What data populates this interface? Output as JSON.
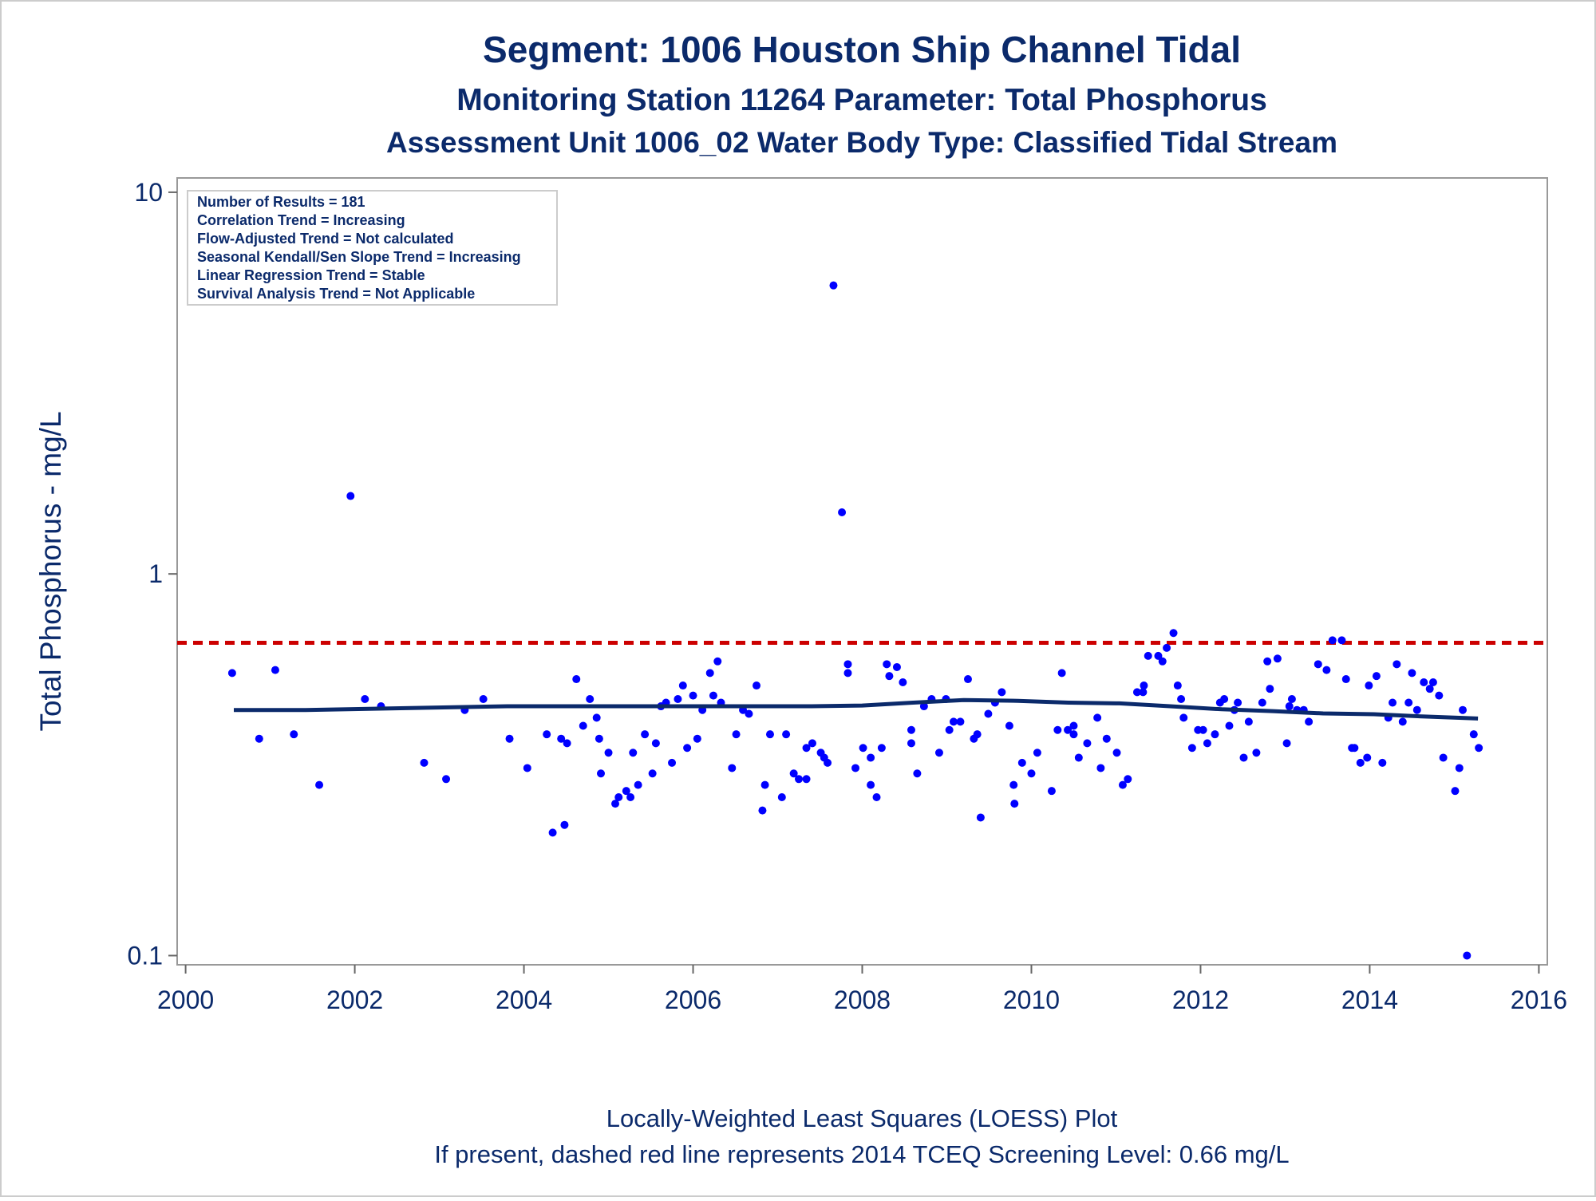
{
  "chart_data": {
    "type": "scatter",
    "title": "Segment: 1006  Houston Ship Channel Tidal",
    "subtitles": [
      "Monitoring Station 11264 Parameter: Total Phosphorus",
      "Assessment Unit 1006_02   Water Body Type: Classified Tidal Stream"
    ],
    "y_label": "Total Phosphorus - mg/L",
    "annotations": [
      "Number of Results = 181",
      "Correlation Trend = Increasing",
      "Flow-Adjusted Trend = Not calculated",
      "Seasonal Kendall/Sen Slope Trend = Increasing",
      "Linear Regression Trend = Stable",
      "Survival Analysis Trend = Not Applicable"
    ],
    "footnotes": [
      "Locally-Weighted Least Squares (LOESS) Plot",
      "If present, dashed red line represents 2014 TCEQ Screening Level: 0.66 mg/L"
    ],
    "xlim": [
      1999.9,
      2016.1
    ],
    "xticks": [
      2000,
      2002,
      2004,
      2006,
      2008,
      2010,
      2012,
      2014,
      2016
    ],
    "ylim": [
      0.0946,
      10.9
    ],
    "yticks": [
      0.1,
      1,
      10
    ],
    "yscale": "log",
    "reference_line": {
      "value": 0.66,
      "color": "#cc0000",
      "style": "dashed"
    },
    "series": [
      {
        "type": "scatter",
        "color": "#0000ff",
        "x": [
          2000.55,
          2000.87,
          2001.06,
          2001.28,
          2001.58,
          2001.95,
          2002.12,
          2002.31,
          2002.82,
          2003.08,
          2003.3,
          2003.52,
          2003.83,
          2004.04,
          2004.27,
          2004.34,
          2004.44,
          2004.48,
          2004.51,
          2004.62,
          2004.7,
          2004.78,
          2004.86,
          2004.89,
          2004.91,
          2005.0,
          2005.08,
          2005.12,
          2005.21,
          2005.26,
          2005.29,
          2005.35,
          2005.43,
          2005.52,
          2005.56,
          2005.62,
          2005.68,
          2005.75,
          2005.82,
          2005.88,
          2005.93,
          2006.0,
          2006.05,
          2006.11,
          2006.2,
          2006.24,
          2006.29,
          2006.33,
          2006.46,
          2006.51,
          2006.59,
          2006.66,
          2006.75,
          2006.82,
          2006.85,
          2006.91,
          2007.05,
          2007.1,
          2007.19,
          2007.25,
          2007.34,
          2007.34,
          2007.41,
          2007.51,
          2007.55,
          2007.59,
          2007.66,
          2007.76,
          2007.83,
          2007.83,
          2007.92,
          2008.01,
          2008.1,
          2008.1,
          2008.17,
          2008.23,
          2008.29,
          2008.32,
          2008.41,
          2008.48,
          2008.58,
          2008.58,
          2008.65,
          2008.73,
          2008.82,
          2008.91,
          2008.99,
          2009.03,
          2009.08,
          2009.16,
          2009.25,
          2009.32,
          2009.36,
          2009.4,
          2009.49,
          2009.57,
          2009.65,
          2009.74,
          2009.79,
          2009.8,
          2009.89,
          2010.0,
          2010.07,
          2010.24,
          2010.31,
          2010.36,
          2010.43,
          2010.5,
          2010.5,
          2010.56,
          2010.66,
          2010.78,
          2010.82,
          2010.89,
          2011.01,
          2011.08,
          2011.14,
          2011.25,
          2011.32,
          2011.33,
          2011.38,
          2011.5,
          2011.55,
          2011.6,
          2011.68,
          2011.73,
          2011.77,
          2011.8,
          2011.9,
          2011.97,
          2012.03,
          2012.08,
          2012.17,
          2012.23,
          2012.28,
          2012.34,
          2012.4,
          2012.44,
          2012.51,
          2012.57,
          2012.66,
          2012.73,
          2012.79,
          2012.82,
          2012.91,
          2013.02,
          2013.05,
          2013.08,
          2013.14,
          2013.22,
          2013.28,
          2013.39,
          2013.49,
          2013.56,
          2013.67,
          2013.72,
          2013.79,
          2013.82,
          2013.89,
          2013.97,
          2013.99,
          2014.08,
          2014.15,
          2014.22,
          2014.27,
          2014.32,
          2014.39,
          2014.46,
          2014.5,
          2014.56,
          2014.64,
          2014.71,
          2014.75,
          2014.82,
          2014.87,
          2015.01,
          2015.06,
          2015.1,
          2015.15,
          2015.23,
          2015.29
        ],
        "values": [
          0.55,
          0.37,
          0.56,
          0.38,
          0.28,
          1.6,
          0.47,
          0.45,
          0.32,
          0.29,
          0.44,
          0.47,
          0.37,
          0.31,
          0.38,
          0.21,
          0.37,
          0.22,
          0.36,
          0.53,
          0.4,
          0.47,
          0.42,
          0.37,
          0.3,
          0.34,
          0.25,
          0.26,
          0.27,
          0.26,
          0.34,
          0.28,
          0.38,
          0.3,
          0.36,
          0.45,
          0.46,
          0.32,
          0.47,
          0.51,
          0.35,
          0.48,
          0.37,
          0.44,
          0.55,
          0.48,
          0.59,
          0.46,
          0.31,
          0.38,
          0.44,
          0.43,
          0.51,
          0.24,
          0.28,
          0.38,
          0.26,
          0.38,
          0.3,
          0.29,
          0.29,
          0.35,
          0.36,
          0.34,
          0.33,
          0.32,
          5.7,
          1.45,
          0.58,
          0.55,
          0.31,
          0.35,
          0.33,
          0.28,
          0.26,
          0.35,
          0.58,
          0.54,
          0.57,
          0.52,
          0.39,
          0.36,
          0.3,
          0.45,
          0.47,
          0.34,
          0.47,
          0.39,
          0.41,
          0.41,
          0.53,
          0.37,
          0.38,
          0.23,
          0.43,
          0.46,
          0.49,
          0.4,
          0.28,
          0.25,
          0.32,
          0.3,
          0.34,
          0.27,
          0.39,
          0.55,
          0.39,
          0.4,
          0.38,
          0.33,
          0.36,
          0.42,
          0.31,
          0.37,
          0.34,
          0.28,
          0.29,
          0.49,
          0.49,
          0.51,
          0.61,
          0.61,
          0.59,
          0.64,
          0.7,
          0.51,
          0.47,
          0.42,
          0.35,
          0.39,
          0.39,
          0.36,
          0.38,
          0.46,
          0.47,
          0.4,
          0.44,
          0.46,
          0.33,
          0.41,
          0.34,
          0.46,
          0.59,
          0.5,
          0.6,
          0.36,
          0.45,
          0.47,
          0.44,
          0.44,
          0.41,
          0.58,
          0.56,
          0.67,
          0.67,
          0.53,
          0.35,
          0.35,
          0.32,
          0.33,
          0.51,
          0.54,
          0.32,
          0.42,
          0.46,
          0.58,
          0.41,
          0.46,
          0.55,
          0.44,
          0.52,
          0.5,
          0.52,
          0.48,
          0.33,
          0.27,
          0.31,
          0.44,
          0.1,
          0.38,
          0.35
        ]
      },
      {
        "type": "line",
        "color": "#0b2a6b",
        "x": [
          2000.57,
          2001.42,
          2002.6,
          2003.8,
          2005.0,
          2006.2,
          2007.4,
          2008.0,
          2008.6,
          2009.2,
          2009.84,
          2010.44,
          2011.04,
          2011.64,
          2012.25,
          2012.85,
          2013.45,
          2014.05,
          2014.65,
          2015.28
        ],
        "values": [
          0.44,
          0.44,
          0.445,
          0.45,
          0.45,
          0.45,
          0.45,
          0.452,
          0.46,
          0.467,
          0.465,
          0.46,
          0.458,
          0.45,
          0.442,
          0.437,
          0.431,
          0.429,
          0.423,
          0.418
        ]
      }
    ]
  }
}
